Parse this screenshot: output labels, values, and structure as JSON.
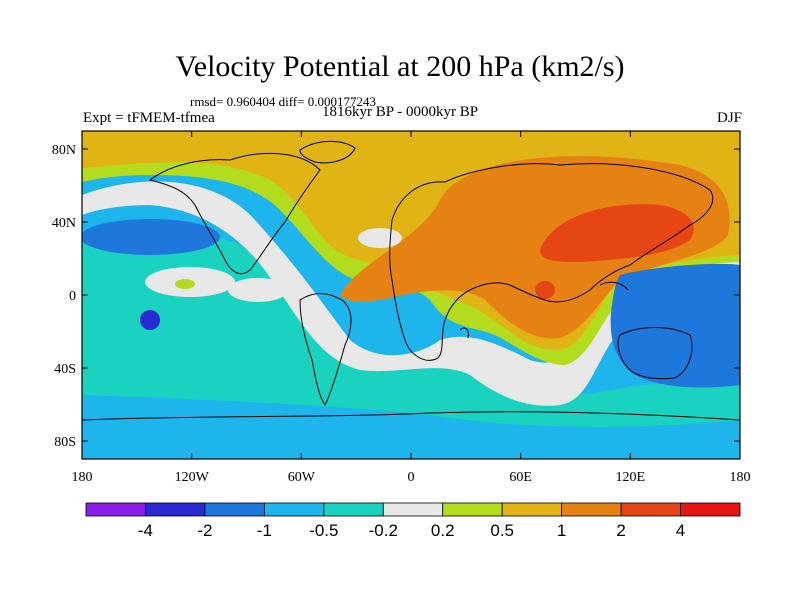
{
  "title": "Velocity Potential at 200 hPa (km2/s)",
  "rmsd_line": "rmsd= 0.960404 diff= 0.000177243",
  "experiment": "Expt = tFMEM-tfmea",
  "period": "1816kyr BP - 0000kyr BP",
  "season": "DJF",
  "y_ticks": [
    "80N",
    "40N",
    "0",
    "40S",
    "80S"
  ],
  "x_ticks": [
    "180",
    "120W",
    "60W",
    "0",
    "60E",
    "120E",
    "180"
  ],
  "colorbar": {
    "colors": [
      "#8a1ee8",
      "#2a2ad4",
      "#1e78dc",
      "#1eb4ec",
      "#19d2c0",
      "#e8e8e8",
      "#b4dc1e",
      "#e0b414",
      "#e68214",
      "#e64614",
      "#e61414"
    ],
    "labels": [
      "-4",
      "-2",
      "-1",
      "-0.5",
      "-0.2",
      "0.2",
      "0.5",
      "1",
      "2",
      "4"
    ]
  },
  "palette": {
    "ocean_blue": "#1eb4ec",
    "teal": "#19d2c0",
    "white": "#e8e8e8",
    "lime": "#b4dc1e",
    "gold": "#e0b414",
    "orange": "#e68214",
    "red_orange": "#e64614",
    "blue": "#1e78dc",
    "dark_blue": "#2a2ad4"
  }
}
